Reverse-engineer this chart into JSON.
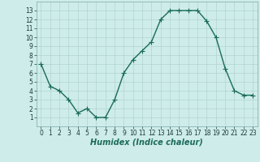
{
  "x": [
    0,
    1,
    2,
    3,
    4,
    5,
    6,
    7,
    8,
    9,
    10,
    11,
    12,
    13,
    14,
    15,
    16,
    17,
    18,
    19,
    20,
    21,
    22,
    23
  ],
  "y": [
    7,
    4.5,
    4,
    3,
    1.5,
    2,
    1,
    1,
    3,
    6,
    7.5,
    8.5,
    9.5,
    12,
    13,
    13,
    13,
    13,
    11.8,
    10,
    6.5,
    4,
    3.5,
    3.5
  ],
  "line_color": "#1a6b5a",
  "marker": "+",
  "marker_size": 4,
  "bg_color": "#ceecea",
  "grid_color": "#b0d4d2",
  "xlabel": "Humidex (Indice chaleur)",
  "xlabel_fontsize": 7,
  "xlim": [
    -0.5,
    23.5
  ],
  "ylim": [
    0,
    14
  ],
  "yticks": [
    1,
    2,
    3,
    4,
    5,
    6,
    7,
    8,
    9,
    10,
    11,
    12,
    13
  ],
  "xticks": [
    0,
    1,
    2,
    3,
    4,
    5,
    6,
    7,
    8,
    9,
    10,
    11,
    12,
    13,
    14,
    15,
    16,
    17,
    18,
    19,
    20,
    21,
    22,
    23
  ],
  "tick_fontsize": 5.5,
  "linewidth": 1.0,
  "marker_linewidth": 0.8
}
